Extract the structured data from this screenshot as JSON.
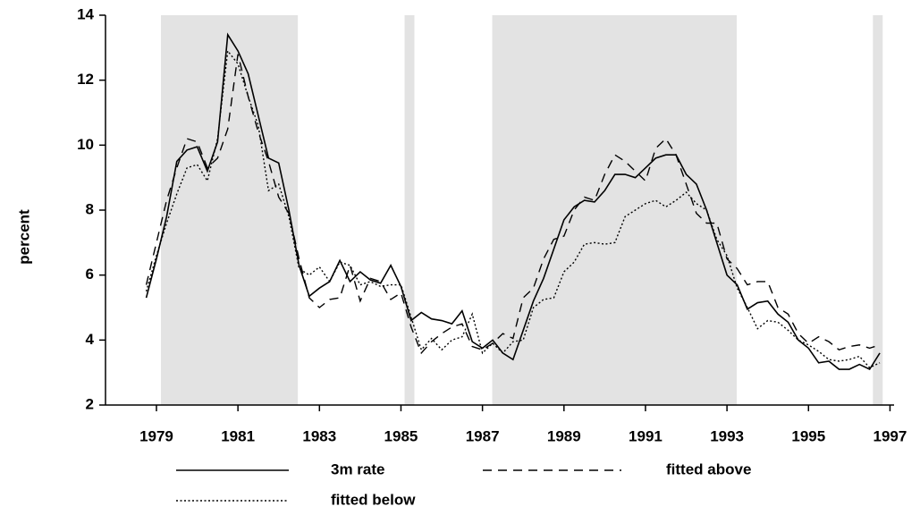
{
  "chart_data": {
    "type": "line",
    "y_label": "percent",
    "x": [
      1978.75,
      1979,
      1979.25,
      1979.5,
      1979.75,
      1980,
      1980.25,
      1980.5,
      1980.75,
      1981,
      1981.25,
      1981.5,
      1981.75,
      1982,
      1982.25,
      1982.5,
      1982.75,
      1983,
      1983.25,
      1983.5,
      1983.75,
      1984,
      1984.25,
      1984.5,
      1984.75,
      1985,
      1985.25,
      1985.5,
      1985.75,
      1986,
      1986.25,
      1986.5,
      1986.75,
      1987,
      1987.25,
      1987.5,
      1987.75,
      1988,
      1988.25,
      1988.5,
      1988.75,
      1989,
      1989.25,
      1989.5,
      1989.75,
      1990,
      1990.25,
      1990.5,
      1990.75,
      1991,
      1991.25,
      1991.5,
      1991.75,
      1992,
      1992.25,
      1992.5,
      1992.75,
      1993,
      1993.25,
      1993.5,
      1993.75,
      1994,
      1994.25,
      1994.5,
      1994.75,
      1995,
      1995.25,
      1995.5,
      1995.75,
      1996,
      1996.25,
      1996.5,
      1996.75
    ],
    "series": [
      {
        "name": "3m rate",
        "color": "#000000",
        "dash": "solid",
        "values": [
          5.3,
          6.5,
          7.8,
          9.5,
          9.85,
          9.95,
          9.2,
          10.1,
          13.4,
          12.9,
          12.2,
          10.9,
          9.6,
          9.45,
          8.0,
          6.3,
          5.35,
          5.6,
          5.8,
          6.45,
          5.8,
          6.1,
          5.85,
          5.75,
          6.3,
          5.65,
          4.6,
          4.85,
          4.65,
          4.6,
          4.5,
          4.9,
          3.95,
          3.75,
          4.0,
          3.6,
          3.4,
          4.3,
          5.2,
          5.9,
          6.8,
          7.7,
          8.1,
          8.3,
          8.25,
          8.6,
          9.1,
          9.1,
          9.0,
          9.3,
          9.6,
          9.7,
          9.7,
          9.1,
          8.8,
          8.0,
          7.0,
          6.0,
          5.7,
          4.95,
          5.15,
          5.2,
          4.8,
          4.55,
          4.0,
          3.75,
          3.3,
          3.35,
          3.1,
          3.1,
          3.25,
          3.1,
          3.6
        ]
      },
      {
        "name": "fitted above",
        "color": "#000000",
        "dash": "dashed",
        "values": [
          5.7,
          7.0,
          8.3,
          9.3,
          10.2,
          10.1,
          9.3,
          9.6,
          10.5,
          12.8,
          11.5,
          10.4,
          9.5,
          8.4,
          7.9,
          6.5,
          5.3,
          5.0,
          5.25,
          5.3,
          6.3,
          5.2,
          5.9,
          5.8,
          5.25,
          5.45,
          4.4,
          3.6,
          3.95,
          4.2,
          4.4,
          4.5,
          3.8,
          3.7,
          3.9,
          4.2,
          4.05,
          5.3,
          5.6,
          6.5,
          7.1,
          7.2,
          8.0,
          8.4,
          8.3,
          9.1,
          9.7,
          9.5,
          9.2,
          8.9,
          9.9,
          10.2,
          9.7,
          8.8,
          7.9,
          7.6,
          7.6,
          6.5,
          6.2,
          5.7,
          5.8,
          5.8,
          5.0,
          4.8,
          4.2,
          3.9,
          4.1,
          3.95,
          3.7,
          3.8,
          3.85,
          3.75,
          3.85
        ]
      },
      {
        "name": "fitted below",
        "color": "#000000",
        "dash": "dotted",
        "values": [
          5.5,
          6.6,
          7.6,
          8.5,
          9.3,
          9.4,
          8.9,
          10.2,
          12.9,
          12.5,
          11.5,
          10.6,
          8.6,
          8.8,
          7.8,
          6.2,
          6.0,
          6.25,
          5.8,
          6.4,
          6.3,
          5.7,
          5.8,
          5.65,
          5.7,
          5.7,
          4.7,
          3.7,
          4.05,
          3.7,
          4.0,
          4.1,
          4.8,
          3.6,
          3.9,
          3.6,
          3.95,
          4.0,
          5.0,
          5.25,
          5.3,
          6.1,
          6.4,
          6.95,
          7.0,
          6.95,
          7.0,
          7.8,
          8.0,
          8.2,
          8.3,
          8.1,
          8.3,
          8.55,
          8.2,
          8.0,
          7.1,
          6.6,
          5.6,
          5.0,
          4.35,
          4.6,
          4.55,
          4.3,
          4.0,
          3.85,
          3.65,
          3.4,
          3.35,
          3.4,
          3.5,
          3.15,
          3.3
        ]
      }
    ],
    "shaded": [
      [
        1979.11,
        1982.47
      ],
      [
        1985.09,
        1985.33
      ],
      [
        1987.24,
        1993.24
      ],
      [
        1996.58,
        1996.82
      ]
    ],
    "shade_color": "#e3e3e3",
    "xlim": [
      1977.75,
      1997.1
    ],
    "xticks": [
      1979,
      1981,
      1983,
      1985,
      1987,
      1989,
      1991,
      1993,
      1995,
      1997
    ],
    "ylim": [
      2,
      14
    ],
    "yticks": [
      2,
      4,
      6,
      8,
      10,
      12,
      14
    ],
    "legend": "bottom"
  }
}
